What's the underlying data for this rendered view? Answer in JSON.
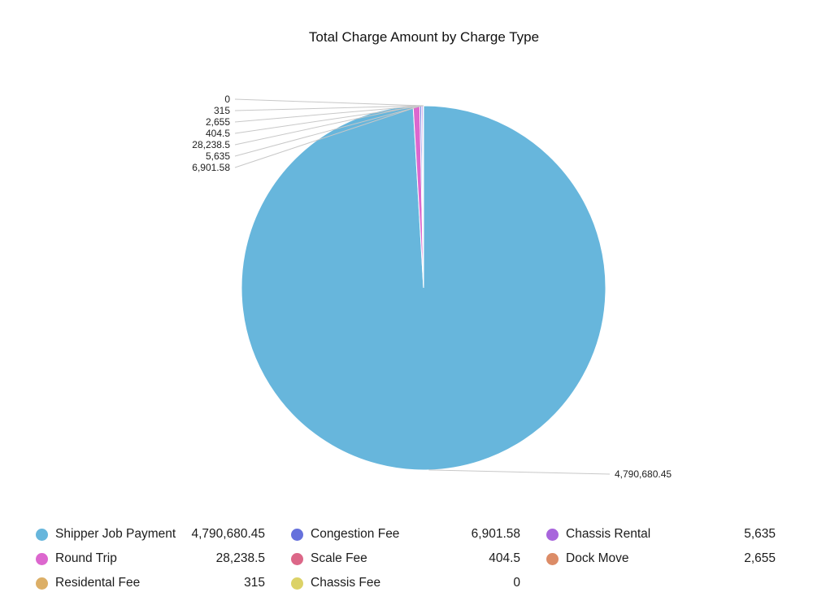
{
  "chart_data": {
    "type": "pie",
    "title": "Total Charge Amount by Charge Type",
    "legend_position": "bottom",
    "slices": [
      {
        "name": "Shipper Job Payment",
        "value": 4790680.45,
        "label": "4,790,680.45",
        "color": "#67b6dc"
      },
      {
        "name": "Congestion Fee",
        "value": 6901.58,
        "label": "6,901.58",
        "color": "#6671dc"
      },
      {
        "name": "Chassis Rental",
        "value": 5635,
        "label": "5,635",
        "color": "#a865dc"
      },
      {
        "name": "Round Trip",
        "value": 28238.5,
        "label": "28,238.5",
        "color": "#dc67ce"
      },
      {
        "name": "Scale Fee",
        "value": 404.5,
        "label": "404.5",
        "color": "#dc6788"
      },
      {
        "name": "Dock Move",
        "value": 2655,
        "label": "2,655",
        "color": "#dc8c67"
      },
      {
        "name": "Residental Fee",
        "value": 315,
        "label": "315",
        "color": "#dcaf67"
      },
      {
        "name": "Chassis Fee",
        "value": 0,
        "label": "0",
        "color": "#dcd267"
      }
    ]
  }
}
